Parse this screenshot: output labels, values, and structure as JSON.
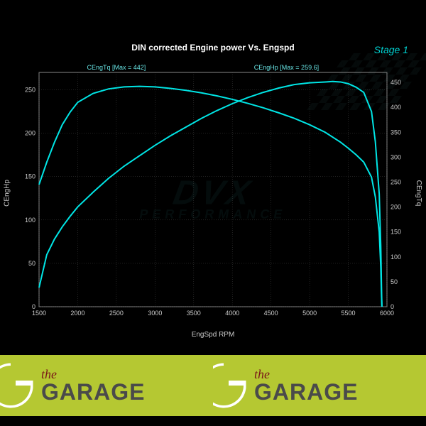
{
  "chart": {
    "type": "line",
    "title": "DIN corrected Engine power Vs. Engspd",
    "stage_label": "Stage 1",
    "background_color": "#000000",
    "grid_color": "#555555",
    "border_color": "#888888",
    "text_color": "#cccccc",
    "line_color": "#00e5e5",
    "label_color": "#66e0e0",
    "title_fontsize": 12,
    "tick_fontsize": 9,
    "label_fontsize": 10,
    "xaxis": {
      "label": "EngSpd RPM",
      "min": 1500,
      "max": 6000,
      "tick_step": 500,
      "ticks": [
        1500,
        2000,
        2500,
        3000,
        3500,
        4000,
        4500,
        5000,
        5500,
        6000
      ]
    },
    "yaxis_left": {
      "label": "CEngHp",
      "min": 0,
      "max": 270,
      "ticks": [
        0,
        50,
        100,
        150,
        200,
        250
      ]
    },
    "yaxis_right": {
      "label": "CEngTq",
      "min": 0,
      "max": 470,
      "ticks": [
        0,
        50,
        100,
        150,
        200,
        250,
        300,
        350,
        400,
        450
      ]
    },
    "series": [
      {
        "name": "CEngTq",
        "label": "CEngTq [Max = 442]",
        "label_x": 2500,
        "axis": "right",
        "color": "#00e5e5",
        "line_width": 2,
        "data": [
          [
            1500,
            245
          ],
          [
            1600,
            290
          ],
          [
            1700,
            330
          ],
          [
            1800,
            365
          ],
          [
            1900,
            390
          ],
          [
            2000,
            410
          ],
          [
            2200,
            428
          ],
          [
            2400,
            437
          ],
          [
            2600,
            441
          ],
          [
            2800,
            442
          ],
          [
            3000,
            441
          ],
          [
            3200,
            438
          ],
          [
            3400,
            434
          ],
          [
            3600,
            429
          ],
          [
            3800,
            423
          ],
          [
            4000,
            416
          ],
          [
            4200,
            408
          ],
          [
            4400,
            399
          ],
          [
            4600,
            389
          ],
          [
            4800,
            378
          ],
          [
            5000,
            365
          ],
          [
            5200,
            350
          ],
          [
            5400,
            330
          ],
          [
            5500,
            318
          ],
          [
            5600,
            305
          ],
          [
            5700,
            290
          ],
          [
            5800,
            260
          ],
          [
            5850,
            220
          ],
          [
            5900,
            150
          ],
          [
            5920,
            80
          ],
          [
            5930,
            20
          ],
          [
            5935,
            0
          ]
        ]
      },
      {
        "name": "CEngHp",
        "label": "CEngHp [Max = 259.6]",
        "label_x": 4700,
        "axis": "left",
        "color": "#00e5e5",
        "line_width": 2,
        "data": [
          [
            1500,
            22
          ],
          [
            1600,
            60
          ],
          [
            1700,
            78
          ],
          [
            1800,
            92
          ],
          [
            1900,
            104
          ],
          [
            2000,
            115
          ],
          [
            2200,
            132
          ],
          [
            2400,
            148
          ],
          [
            2600,
            162
          ],
          [
            2800,
            174
          ],
          [
            3000,
            186
          ],
          [
            3200,
            197
          ],
          [
            3400,
            207
          ],
          [
            3600,
            217
          ],
          [
            3800,
            226
          ],
          [
            4000,
            234
          ],
          [
            4200,
            241
          ],
          [
            4400,
            247
          ],
          [
            4600,
            252
          ],
          [
            4800,
            256
          ],
          [
            5000,
            258
          ],
          [
            5200,
            259
          ],
          [
            5300,
            259.6
          ],
          [
            5400,
            259
          ],
          [
            5500,
            257
          ],
          [
            5600,
            253
          ],
          [
            5700,
            247
          ],
          [
            5800,
            225
          ],
          [
            5850,
            190
          ],
          [
            5900,
            130
          ],
          [
            5920,
            70
          ],
          [
            5930,
            18
          ],
          [
            5935,
            0
          ]
        ]
      }
    ]
  },
  "watermark": {
    "line1": "DVX",
    "line2": "PERFORMANCE"
  },
  "banner": {
    "background": "#b5c832",
    "logo_color": "#ffffff",
    "the_text": "the",
    "the_color": "#7a1818",
    "garage_text": "GARAGE",
    "garage_color": "#4a4a4a"
  }
}
